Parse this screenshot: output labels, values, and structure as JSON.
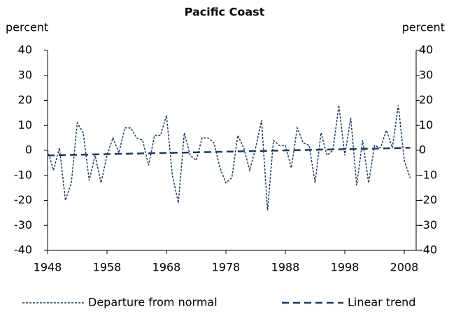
{
  "chart_data": {
    "type": "line",
    "title": "Pacific Coast",
    "y_label": "percent",
    "y2_label": "percent",
    "x": [
      1948,
      1949,
      1950,
      1951,
      1952,
      1953,
      1954,
      1955,
      1956,
      1957,
      1958,
      1959,
      1960,
      1961,
      1962,
      1963,
      1964,
      1965,
      1966,
      1967,
      1968,
      1969,
      1970,
      1971,
      1972,
      1973,
      1974,
      1975,
      1976,
      1977,
      1978,
      1979,
      1980,
      1981,
      1982,
      1983,
      1984,
      1985,
      1986,
      1987,
      1988,
      1989,
      1990,
      1991,
      1992,
      1993,
      1994,
      1995,
      1996,
      1997,
      1998,
      1999,
      2000,
      2001,
      2002,
      2003,
      2004,
      2005,
      2006,
      2007,
      2008,
      2009
    ],
    "series": [
      {
        "name": "Departure from normal",
        "color": "#1b3a5e",
        "line_style": "dotted",
        "values": [
          0,
          -8,
          1,
          -20,
          -13,
          11,
          7,
          -12,
          -2,
          -13,
          -2,
          5,
          -1,
          9,
          9,
          5,
          4,
          -6,
          6,
          6,
          14,
          -10,
          -21,
          7,
          -2,
          -4,
          5,
          5,
          3,
          -7,
          -13,
          -11,
          6,
          1,
          -8,
          1,
          12,
          -24,
          4,
          2,
          2,
          -7,
          9,
          3,
          2,
          -13,
          7,
          -2,
          0,
          18,
          -2,
          13,
          -14,
          4,
          -13,
          2,
          1,
          8,
          1,
          18,
          -4,
          -11
        ]
      },
      {
        "name": "Linear trend",
        "color": "#1b3a5e",
        "line_style": "dashed",
        "values": [
          -2.0,
          -2.0,
          -1.9,
          -1.9,
          -1.8,
          -1.8,
          -1.7,
          -1.7,
          -1.6,
          -1.6,
          -1.5,
          -1.5,
          -1.4,
          -1.4,
          -1.3,
          -1.3,
          -1.2,
          -1.2,
          -1.1,
          -1.1,
          -1.0,
          -1.0,
          -0.9,
          -0.9,
          -0.8,
          -0.8,
          -0.7,
          -0.7,
          -0.6,
          -0.6,
          -0.5,
          -0.5,
          -0.4,
          -0.4,
          -0.3,
          -0.3,
          -0.2,
          -0.2,
          -0.1,
          -0.1,
          0.0,
          0.0,
          0.1,
          0.1,
          0.2,
          0.2,
          0.3,
          0.3,
          0.4,
          0.4,
          0.5,
          0.5,
          0.6,
          0.6,
          0.7,
          0.7,
          0.8,
          0.8,
          0.9,
          0.9,
          1.0,
          1.0
        ]
      }
    ],
    "xlim": [
      1948,
      2010
    ],
    "xticks": [
      1948,
      1958,
      1968,
      1978,
      1988,
      1998,
      2008
    ],
    "ylim": [
      -40,
      40
    ],
    "yticks": [
      -40,
      -30,
      -20,
      -10,
      0,
      10,
      20,
      30,
      40
    ],
    "y2lim": [
      -40,
      40
    ],
    "y2ticks": [
      -40,
      -30,
      -20,
      -10,
      0,
      10,
      20,
      30,
      40
    ],
    "grid": false,
    "legend": "bottom"
  }
}
